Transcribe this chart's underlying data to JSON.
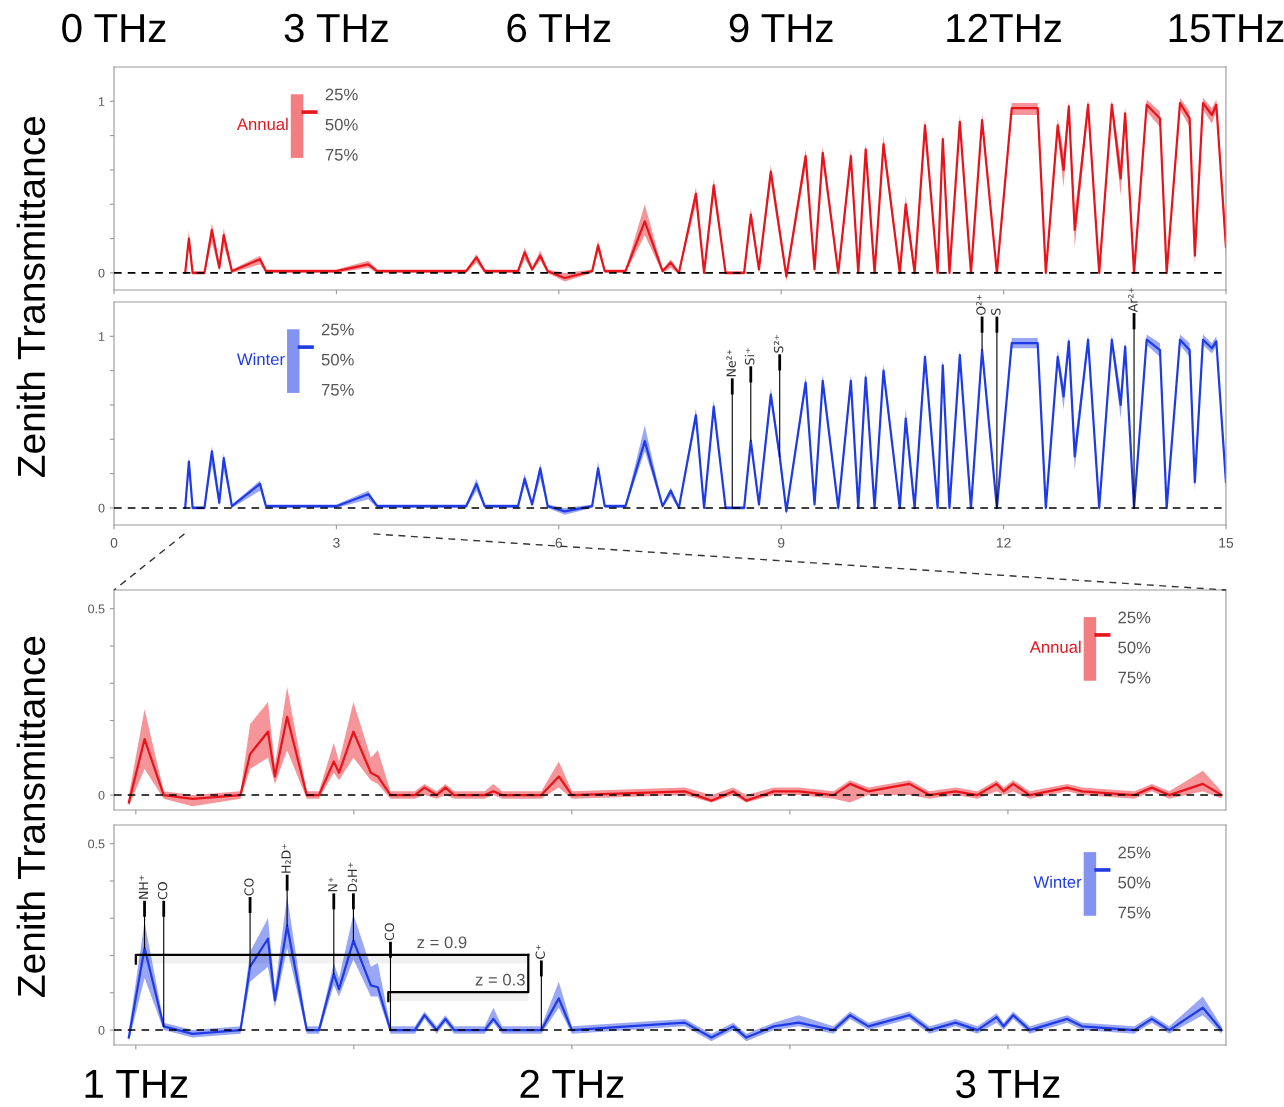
{
  "chart_data": [
    {
      "type": "line",
      "ylabel": "Zenith Transmittance",
      "xlim": [
        0,
        15
      ],
      "ylim": [
        -0.1,
        1.2
      ],
      "xticks": [
        0,
        3,
        6,
        9,
        12,
        15
      ],
      "yticks": [
        0,
        {
          "value": 0.2,
          "label": null
        },
        {
          "value": 0.4,
          "label": null
        },
        {
          "value": 0.6,
          "label": null
        },
        {
          "value": 0.8,
          "label": null
        },
        1
      ],
      "x2lim": [
        0,
        15
      ],
      "x2ticks": [
        {
          "value": 0,
          "label": "0 THz"
        },
        {
          "value": 3,
          "label": "3 THz"
        },
        {
          "value": 6,
          "label": "6 THz"
        },
        {
          "value": 9,
          "label": "9 THz"
        },
        {
          "value": 12,
          "label": "12THz"
        },
        {
          "value": 15,
          "label": "15THz"
        }
      ],
      "tick_labels": "y",
      "legend": "top left",
      "grid": false,
      "ref_lines": [
        {
          "axis": "y",
          "value": 0,
          "color": "#000000",
          "line_style": "dashed"
        }
      ],
      "annotations": [
        "25%",
        "50%",
        "75%"
      ],
      "series": [
        {
          "name": "Annual",
          "color": "#e8141c",
          "x": [
            0.96,
            1.01,
            1.06,
            1.22,
            1.32,
            1.42,
            1.48,
            1.59,
            1.97,
            2.05,
            3.0,
            3.43,
            3.55,
            4.75,
            4.89,
            5.0,
            5.45,
            5.54,
            5.64,
            5.75,
            5.85,
            6.08,
            6.45,
            6.53,
            6.62,
            6.9,
            7.16,
            7.4,
            7.51,
            7.62,
            7.85,
            7.96,
            8.09,
            8.25,
            8.5,
            8.59,
            8.7,
            8.86,
            9.07,
            9.33,
            9.45,
            9.56,
            9.77,
            9.94,
            10.04,
            10.14,
            10.26,
            10.38,
            10.6,
            10.68,
            10.8,
            10.94,
            11.11,
            11.18,
            11.27,
            11.41,
            11.56,
            11.71,
            11.91,
            12.11,
            12.46,
            12.57,
            12.73,
            12.81,
            12.88,
            12.96,
            13.14,
            13.29,
            13.46,
            13.58,
            13.64,
            13.76,
            13.93,
            14.11,
            14.2,
            14.38,
            14.51,
            14.58,
            14.69,
            14.81,
            14.87,
            15.0
          ],
          "values": [
            0,
            0.2,
            0,
            0,
            0.25,
            0.03,
            0.22,
            0.01,
            0.08,
            0.01,
            0.01,
            0.05,
            0.01,
            0.01,
            0.09,
            0.01,
            0.01,
            0.12,
            0.02,
            0.1,
            0.01,
            -0.03,
            0.01,
            0.16,
            0.01,
            0.01,
            0.3,
            0.01,
            0.06,
            0,
            0.46,
            0,
            0.51,
            0,
            0,
            0.34,
            0.02,
            0.59,
            -0.02,
            0.68,
            0.02,
            0.7,
            0,
            0.68,
            0,
            0.72,
            0,
            0.75,
            0,
            0.4,
            0,
            0.86,
            0,
            0.78,
            0,
            0.88,
            0,
            0.89,
            0,
            0.96,
            0.96,
            0,
            0.86,
            0.6,
            0.97,
            0.25,
            0.98,
            0,
            0.98,
            0.55,
            0.93,
            0,
            0.98,
            0.9,
            0,
            0.99,
            0.9,
            0.1,
            0.99,
            0.92,
            0.98,
            0.15
          ],
          "lower": [
            -0.01,
            0.15,
            -0.01,
            -0.01,
            0.18,
            0.01,
            0.16,
            0,
            0.05,
            0,
            0,
            0.03,
            0,
            0,
            0.06,
            0,
            0,
            0.08,
            0.01,
            0.07,
            0,
            -0.05,
            0,
            0.12,
            0,
            0,
            0.22,
            0,
            0.03,
            -0.01,
            0.4,
            -0.01,
            0.45,
            -0.01,
            -0.01,
            0.3,
            0,
            0.53,
            -0.05,
            0.62,
            0,
            0.65,
            -0.02,
            0.63,
            -0.02,
            0.67,
            -0.02,
            0.7,
            -0.02,
            0.32,
            -0.02,
            0.81,
            -0.02,
            0.72,
            -0.02,
            0.84,
            -0.02,
            0.85,
            -0.02,
            0.92,
            0.92,
            -0.02,
            0.8,
            0.5,
            0.93,
            0.15,
            0.94,
            -0.02,
            0.94,
            0.45,
            0.89,
            -0.02,
            0.94,
            0.85,
            -0.02,
            0.95,
            0.85,
            0.05,
            0.95,
            0.87,
            0.94,
            0.1
          ],
          "upper": [
            0.01,
            0.25,
            0.01,
            0.01,
            0.29,
            0.05,
            0.26,
            0.02,
            0.1,
            0.02,
            0.02,
            0.07,
            0.02,
            0.02,
            0.11,
            0.02,
            0.02,
            0.15,
            0.03,
            0.13,
            0.02,
            0,
            0.02,
            0.19,
            0.02,
            0.02,
            0.4,
            0.02,
            0.08,
            0.01,
            0.5,
            0.01,
            0.55,
            0.01,
            0.01,
            0.38,
            0.04,
            0.63,
            0,
            0.72,
            0.05,
            0.74,
            0.02,
            0.72,
            0.02,
            0.76,
            0.02,
            0.8,
            0.02,
            0.45,
            0.02,
            0.9,
            0.02,
            0.82,
            0.02,
            0.92,
            0.02,
            0.93,
            0.02,
            0.99,
            0.99,
            0.02,
            0.9,
            0.7,
            1.0,
            0.35,
            1.01,
            0.02,
            1.01,
            0.65,
            0.97,
            0.02,
            1.01,
            0.94,
            0.02,
            1.02,
            0.94,
            0.2,
            1.02,
            0.96,
            1.01,
            0.25
          ]
        }
      ]
    },
    {
      "type": "line",
      "xlim": [
        0,
        15
      ],
      "ylim": [
        -0.1,
        1.2
      ],
      "xticks": [
        0,
        3,
        6,
        9,
        12,
        15
      ],
      "yticks": [
        0,
        {
          "value": 0.2,
          "label": null
        },
        {
          "value": 0.4,
          "label": null
        },
        {
          "value": 0.6,
          "label": null
        },
        {
          "value": 0.8,
          "label": null
        },
        1
      ],
      "legend": "top left",
      "grid": false,
      "ref_lines": [
        {
          "axis": "y",
          "value": 0,
          "color": "#000000",
          "line_style": "dashed"
        }
      ],
      "annotations": [
        "25%",
        "50%",
        "75%",
        {
          "text": "Ne²⁺",
          "x": 8.34,
          "y": 0
        },
        {
          "text": "Si⁺",
          "x": 8.59,
          "y": 0.39
        },
        {
          "text": "S²⁺",
          "x": 8.98,
          "y": 0.3
        },
        {
          "text": "O²⁺",
          "x": 11.71,
          "y": 0.92
        },
        {
          "text": "S",
          "x": 11.91,
          "y": 0
        },
        {
          "text": "Ar²⁺",
          "x": 13.76,
          "y": 0
        }
      ],
      "series": [
        {
          "name": "Winter",
          "color": "#1f3be6",
          "x": [
            0.96,
            1.01,
            1.06,
            1.22,
            1.32,
            1.42,
            1.48,
            1.59,
            1.97,
            2.05,
            3.0,
            3.43,
            3.55,
            4.75,
            4.89,
            5.0,
            5.45,
            5.54,
            5.64,
            5.75,
            5.85,
            6.08,
            6.45,
            6.53,
            6.62,
            6.9,
            7.16,
            7.4,
            7.51,
            7.62,
            7.85,
            7.96,
            8.09,
            8.25,
            8.34,
            8.5,
            8.59,
            8.7,
            8.86,
            8.98,
            9.07,
            9.33,
            9.45,
            9.56,
            9.77,
            9.94,
            10.04,
            10.14,
            10.26,
            10.38,
            10.6,
            10.68,
            10.8,
            10.94,
            11.11,
            11.18,
            11.27,
            11.41,
            11.56,
            11.71,
            11.91,
            12.11,
            12.46,
            12.57,
            12.73,
            12.81,
            12.88,
            12.96,
            13.14,
            13.29,
            13.46,
            13.58,
            13.64,
            13.76,
            13.93,
            14.11,
            14.2,
            14.38,
            14.51,
            14.58,
            14.69,
            14.81,
            14.87,
            15.0
          ],
          "values": [
            0,
            0.27,
            0,
            0,
            0.33,
            0.03,
            0.29,
            0.01,
            0.14,
            0.01,
            0.01,
            0.08,
            0.01,
            0.01,
            0.14,
            0.01,
            0.01,
            0.17,
            0.02,
            0.23,
            0.01,
            -0.02,
            0.01,
            0.23,
            0.01,
            0.01,
            0.39,
            0.01,
            0.1,
            0,
            0.54,
            0,
            0.59,
            0,
            0,
            0,
            0.39,
            0.02,
            0.66,
            0.3,
            -0.02,
            0.73,
            0.02,
            0.74,
            0,
            0.74,
            0,
            0.76,
            0,
            0.8,
            0,
            0.52,
            0,
            0.88,
            0,
            0.83,
            0,
            0.89,
            0,
            0.92,
            0,
            0.96,
            0.96,
            0,
            0.88,
            0.65,
            0.97,
            0.3,
            0.98,
            0,
            0.98,
            0.6,
            0.94,
            0,
            0.98,
            0.92,
            0,
            0.98,
            0.92,
            0.15,
            0.98,
            0.93,
            0.97,
            0.15
          ],
          "lower": [
            -0.01,
            0.2,
            -0.01,
            -0.01,
            0.25,
            0.01,
            0.22,
            0,
            0.1,
            0,
            0,
            0.05,
            0,
            0,
            0.1,
            0,
            0,
            0.13,
            0.01,
            0.17,
            0,
            -0.04,
            0,
            0.18,
            0,
            0,
            0.33,
            0,
            0.07,
            -0.01,
            0.5,
            -0.01,
            0.55,
            -0.01,
            -0.01,
            -0.01,
            0.35,
            0,
            0.62,
            0.26,
            -0.04,
            0.7,
            0,
            0.7,
            -0.02,
            0.7,
            -0.02,
            0.72,
            -0.02,
            0.76,
            -0.02,
            0.46,
            -0.02,
            0.85,
            -0.02,
            0.79,
            -0.02,
            0.86,
            -0.02,
            0.89,
            -0.02,
            0.93,
            0.93,
            -0.02,
            0.84,
            0.57,
            0.94,
            0.22,
            0.95,
            -0.02,
            0.95,
            0.52,
            0.91,
            -0.02,
            0.95,
            0.88,
            -0.02,
            0.95,
            0.88,
            0.1,
            0.95,
            0.9,
            0.94,
            0.1
          ],
          "upper": [
            0.01,
            0.3,
            0.01,
            0.01,
            0.36,
            0.05,
            0.32,
            0.02,
            0.16,
            0.02,
            0.02,
            0.1,
            0.02,
            0.02,
            0.17,
            0.02,
            0.02,
            0.2,
            0.03,
            0.26,
            0.02,
            0,
            0.02,
            0.27,
            0.02,
            0.02,
            0.48,
            0.02,
            0.12,
            0.01,
            0.58,
            0.01,
            0.63,
            0.01,
            0.01,
            0.01,
            0.42,
            0.04,
            0.7,
            0.34,
            0,
            0.77,
            0.04,
            0.78,
            0.02,
            0.78,
            0.02,
            0.8,
            0.02,
            0.84,
            0.02,
            0.58,
            0.02,
            0.91,
            0.02,
            0.87,
            0.02,
            0.92,
            0.02,
            0.95,
            0.02,
            0.99,
            0.99,
            0.02,
            0.92,
            0.72,
            1.0,
            0.38,
            1.01,
            0.02,
            1.01,
            0.68,
            0.97,
            0.02,
            1.01,
            0.96,
            0.02,
            1.01,
            0.96,
            0.2,
            1.01,
            0.96,
            1.0,
            0.2
          ]
        }
      ]
    },
    {
      "type": "line",
      "ylabel": "Zenith Transmittance",
      "xlim": [
        0.95,
        3.5
      ],
      "ylim": [
        -0.04,
        0.55
      ],
      "xticks": [
        {
          "value": 1,
          "label": null
        },
        {
          "value": 1.5,
          "label": null
        },
        {
          "value": 2,
          "label": null
        },
        {
          "value": 2.5,
          "label": null
        },
        {
          "value": 3,
          "label": null
        }
      ],
      "yticks": [
        0,
        {
          "value": 0.1,
          "label": null
        },
        {
          "value": 0.2,
          "label": null
        },
        {
          "value": 0.3,
          "label": null
        },
        {
          "value": 0.4,
          "label": null
        },
        0.5
      ],
      "tick_labels": "y",
      "legend": "top right",
      "grid": false,
      "ref_lines": [
        {
          "axis": "y",
          "value": 0,
          "color": "#000000",
          "line_style": "dashed"
        }
      ],
      "annotations": [
        "25%",
        "50%",
        "75%"
      ],
      "series": [
        {
          "name": "Annual",
          "color": "#e8141c",
          "x": [
            0.984,
            1.02,
            1.064,
            1.13,
            1.24,
            1.262,
            1.303,
            1.319,
            1.347,
            1.392,
            1.42,
            1.454,
            1.466,
            1.499,
            1.539,
            1.555,
            1.584,
            1.64,
            1.662,
            1.69,
            1.71,
            1.73,
            1.8,
            1.82,
            1.84,
            1.93,
            1.97,
            2.0,
            2.259,
            2.32,
            2.37,
            2.4,
            2.463,
            2.52,
            2.6,
            2.638,
            2.68,
            2.774,
            2.82,
            2.88,
            2.93,
            2.974,
            2.99,
            3.012,
            3.05,
            3.136,
            3.17,
            3.29,
            3.33,
            3.37,
            3.447,
            3.49
          ],
          "values": [
            -0.02,
            0.15,
            0,
            -0.01,
            0,
            0.11,
            0.17,
            0.05,
            0.21,
            0,
            0,
            0.09,
            0.06,
            0.17,
            0.06,
            0.05,
            0,
            0,
            0.02,
            0,
            0.02,
            0,
            0,
            0.01,
            0,
            0,
            0.05,
            0,
            0.01,
            -0.015,
            0.01,
            -0.015,
            0.01,
            0.01,
            0,
            0.03,
            0.01,
            0.03,
            0,
            0.01,
            0,
            0.03,
            0.01,
            0.03,
            0,
            0.02,
            0.01,
            0,
            0.02,
            0,
            0.03,
            0
          ],
          "lower": [
            -0.03,
            0.07,
            -0.01,
            -0.03,
            -0.01,
            0.07,
            0.1,
            0.03,
            0.12,
            -0.01,
            -0.01,
            0.06,
            0.04,
            0.1,
            0.04,
            0.03,
            -0.01,
            -0.01,
            0,
            -0.01,
            0,
            -0.01,
            -0.01,
            0,
            -0.01,
            -0.01,
            0.02,
            -0.01,
            0,
            -0.02,
            0,
            -0.02,
            0,
            0,
            -0.01,
            -0.02,
            0,
            0,
            -0.01,
            0,
            -0.01,
            0.01,
            0,
            0.01,
            -0.01,
            0.01,
            0,
            -0.01,
            0.01,
            -0.01,
            0.01,
            -0.01
          ],
          "upper": [
            0,
            0.23,
            0.01,
            0,
            0.01,
            0.19,
            0.25,
            0.08,
            0.29,
            0.01,
            0.01,
            0.14,
            0.09,
            0.25,
            0.1,
            0.12,
            0.01,
            0.01,
            0.03,
            0.01,
            0.03,
            0.01,
            0.01,
            0.03,
            0.01,
            0.01,
            0.09,
            0.01,
            0.02,
            0,
            0.02,
            0,
            0.02,
            0.02,
            0.01,
            0.04,
            0.02,
            0.04,
            0.01,
            0.02,
            0.01,
            0.04,
            0.02,
            0.04,
            0.01,
            0.03,
            0.02,
            0.01,
            0.03,
            0.01,
            0.065,
            0.01
          ]
        }
      ]
    },
    {
      "type": "line",
      "xlim": [
        0.95,
        3.5
      ],
      "ylim": [
        -0.04,
        0.55
      ],
      "xticks": [
        {
          "value": 1,
          "label": "1 THz"
        },
        {
          "value": 1.5,
          "label": null
        },
        {
          "value": 2,
          "label": "2 THz"
        },
        {
          "value": 2.5,
          "label": null
        },
        {
          "value": 3,
          "label": "3 THz"
        }
      ],
      "yticks": [
        0,
        {
          "value": 0.1,
          "label": null
        },
        {
          "value": 0.2,
          "label": null
        },
        {
          "value": 0.3,
          "label": null
        },
        {
          "value": 0.4,
          "label": null
        },
        0.5
      ],
      "legend": "top right",
      "grid": false,
      "ref_lines": [
        {
          "axis": "y",
          "value": 0,
          "color": "#000000",
          "line_style": "dashed"
        }
      ],
      "bands": [
        {
          "axis": "x",
          "from": 1.0,
          "to": 1.9,
          "label": "z = 0.9"
        },
        {
          "axis": "x",
          "from": 1.579,
          "to": 1.9,
          "label": "z = 0.3"
        }
      ],
      "annotations": [
        "25%",
        "50%",
        "75%",
        {
          "text": "NH⁺",
          "x": 1.02,
          "y": 0.22
        },
        {
          "text": "CO",
          "x": 1.064,
          "y": 0.01
        },
        {
          "text": "CO",
          "x": 1.262,
          "y": 0.17
        },
        {
          "text": "H₂D⁺",
          "x": 1.347,
          "y": 0.28
        },
        {
          "text": "N⁺",
          "x": 1.454,
          "y": 0.15
        },
        {
          "text": "D₂H⁺",
          "x": 1.499,
          "y": 0.24
        },
        {
          "text": "CO",
          "x": 1.584,
          "y": 0
        },
        {
          "text": "C⁺",
          "x": 1.93,
          "y": 0
        }
      ],
      "series": [
        {
          "name": "Winter",
          "color": "#1f3be6",
          "x": [
            0.984,
            1.02,
            1.064,
            1.13,
            1.24,
            1.262,
            1.303,
            1.319,
            1.347,
            1.392,
            1.42,
            1.454,
            1.466,
            1.499,
            1.539,
            1.555,
            1.584,
            1.64,
            1.662,
            1.69,
            1.71,
            1.73,
            1.8,
            1.82,
            1.84,
            1.93,
            1.97,
            2.0,
            2.259,
            2.32,
            2.37,
            2.4,
            2.463,
            2.52,
            2.6,
            2.638,
            2.68,
            2.774,
            2.82,
            2.88,
            2.93,
            2.974,
            2.99,
            3.012,
            3.05,
            3.136,
            3.17,
            3.29,
            3.33,
            3.37,
            3.447,
            3.49
          ],
          "values": [
            -0.02,
            0.22,
            0.01,
            -0.01,
            0,
            0.17,
            0.245,
            0.08,
            0.28,
            0,
            0,
            0.15,
            0.11,
            0.24,
            0.12,
            0.115,
            0,
            0,
            0.04,
            0,
            0.03,
            0,
            0,
            0.03,
            0,
            0,
            0.085,
            0,
            0.02,
            -0.02,
            0.01,
            -0.02,
            0.01,
            0.02,
            0,
            0.04,
            0.01,
            0.04,
            0,
            0.02,
            0,
            0.035,
            0.01,
            0.04,
            0,
            0.03,
            0.01,
            0,
            0.03,
            0,
            0.06,
            0
          ],
          "lower": [
            -0.03,
            0.14,
            0,
            -0.02,
            -0.01,
            0.13,
            0.17,
            0.06,
            0.22,
            -0.01,
            -0.01,
            0.12,
            0.09,
            0.19,
            0.09,
            0.09,
            -0.01,
            -0.01,
            0.03,
            -0.01,
            0.02,
            -0.01,
            -0.01,
            0.02,
            -0.01,
            -0.01,
            0.06,
            -0.01,
            0.01,
            -0.03,
            0,
            -0.03,
            0,
            0.01,
            -0.01,
            0.03,
            0,
            0.03,
            -0.01,
            0.01,
            -0.01,
            0.02,
            0,
            0.03,
            -0.01,
            0.02,
            0,
            -0.01,
            0.02,
            -0.01,
            0.04,
            -0.01
          ],
          "upper": [
            0,
            0.29,
            0.02,
            0,
            0.01,
            0.21,
            0.3,
            0.11,
            0.36,
            0.01,
            0.01,
            0.18,
            0.14,
            0.31,
            0.17,
            0.18,
            0.01,
            0.01,
            0.05,
            0.01,
            0.04,
            0.01,
            0.01,
            0.06,
            0.01,
            0.01,
            0.13,
            0.01,
            0.03,
            -0.01,
            0.02,
            -0.01,
            0.02,
            0.04,
            0.01,
            0.05,
            0.02,
            0.05,
            0.01,
            0.03,
            0.01,
            0.045,
            0.02,
            0.05,
            0.01,
            0.04,
            0.02,
            0.01,
            0.04,
            0.01,
            0.09,
            0.01
          ]
        }
      ]
    }
  ]
}
